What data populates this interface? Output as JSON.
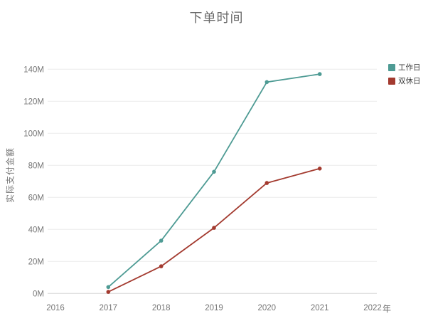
{
  "page": {
    "background": "#ffffff"
  },
  "chart_data": {
    "type": "line",
    "title": "下单时间",
    "xlabel": "年",
    "ylabel": "实际支付金额",
    "x": [
      2017,
      2018,
      2019,
      2020,
      2021
    ],
    "series": [
      {
        "name": "工作日",
        "color": "#4e9b94",
        "values_millions": [
          4,
          33,
          76,
          132,
          137
        ]
      },
      {
        "name": "双休日",
        "color": "#a33a2f",
        "values_millions": [
          1,
          17,
          41,
          69,
          78
        ]
      }
    ],
    "x_ticks": [
      2016,
      2017,
      2018,
      2019,
      2020,
      2021,
      2022
    ],
    "y_ticks_millions": [
      0,
      20,
      40,
      60,
      80,
      100,
      120,
      140
    ],
    "y_tick_suffix": "M",
    "xlim": [
      2016,
      2022
    ],
    "ylim_millions": [
      0,
      140
    ],
    "grid": "horizontal",
    "legend_position": "top-right",
    "colors": {
      "axis_text": "#757575",
      "title_text": "#6a6a6a",
      "gridline": "#ececec",
      "axis_line": "#d6d6d6",
      "legend_text": "#3d3d3d"
    }
  }
}
